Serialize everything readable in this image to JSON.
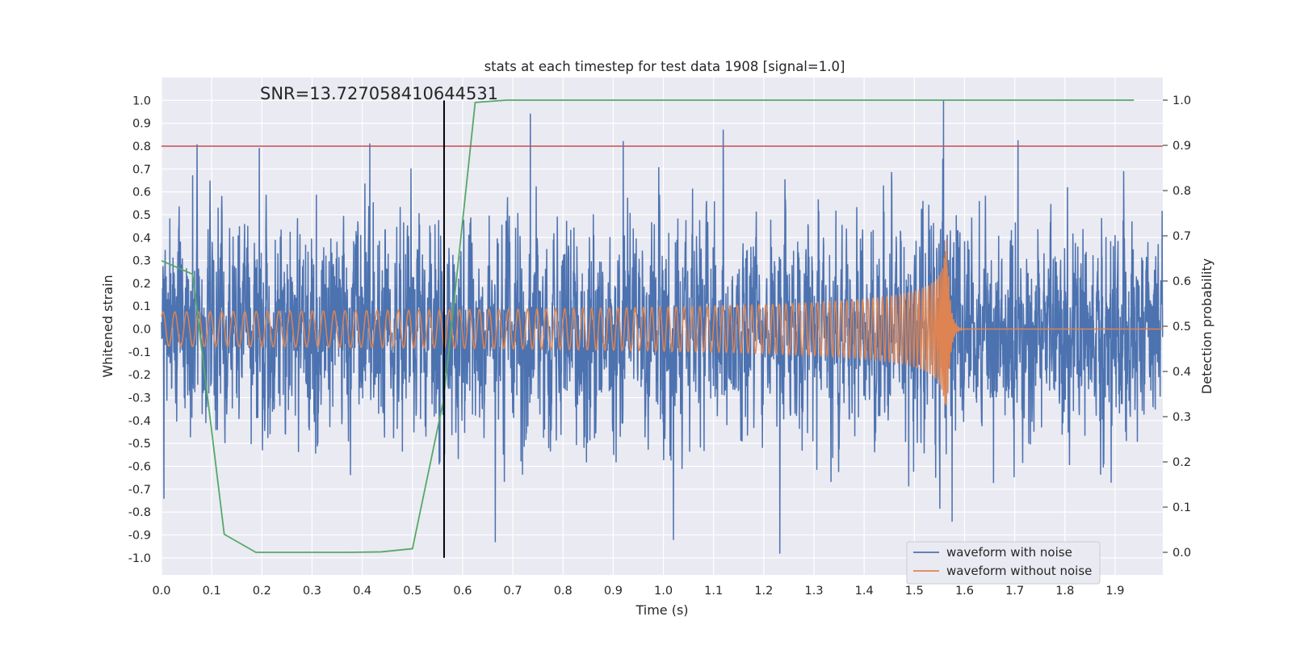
{
  "chart_data": {
    "type": "line",
    "title": "stats at each timestep for test data 1908 [signal=1.0]",
    "xlabel": "Time (s)",
    "ylabel": "Whitened strain",
    "y2label": "Detection probability",
    "xlim": [
      0.0,
      1.995
    ],
    "ylim": [
      -1.075,
      1.1
    ],
    "y2lim": [
      -0.05,
      1.05
    ],
    "xticks": [
      "0.0",
      "0.1",
      "0.2",
      "0.3",
      "0.4",
      "0.5",
      "0.6",
      "0.7",
      "0.8",
      "0.9",
      "1.0",
      "1.1",
      "1.2",
      "1.3",
      "1.4",
      "1.5",
      "1.6",
      "1.7",
      "1.8",
      "1.9"
    ],
    "yticks": [
      "1.0",
      "0.9",
      "0.8",
      "0.7",
      "0.6",
      "0.5",
      "0.4",
      "0.3",
      "0.2",
      "0.1",
      "0.0",
      "-0.1",
      "-0.2",
      "-0.3",
      "-0.4",
      "-0.5",
      "-0.6",
      "-0.7",
      "-0.8",
      "-0.9",
      "-1.0"
    ],
    "y2ticks": [
      "1.0",
      "0.9",
      "0.8",
      "0.7",
      "0.6",
      "0.5",
      "0.4",
      "0.3",
      "0.2",
      "0.1",
      "0.0"
    ],
    "annotation": "SNR=13.727058410644531",
    "threshold": {
      "y": 0.8,
      "color": "#c44e52"
    },
    "marker_line": {
      "x": 0.563,
      "y_from": -1.0,
      "y_to": 1.0,
      "color": "#000000"
    },
    "series": [
      {
        "name": "waveform with noise",
        "axis": "left",
        "color": "#4c72b0",
        "sample_rate": 2048,
        "duration": 2.0,
        "rms": 0.2,
        "notable_peaks": [
          {
            "x": 0.062,
            "y": 0.67
          },
          {
            "x": 0.195,
            "y": 0.79
          },
          {
            "x": 0.415,
            "y": 0.81
          },
          {
            "x": 0.735,
            "y": 0.94
          },
          {
            "x": 0.92,
            "y": 0.82
          },
          {
            "x": 1.558,
            "y": 1.0
          },
          {
            "x": 1.232,
            "y": -0.98
          },
          {
            "x": 1.02,
            "y": -0.92
          },
          {
            "x": 0.665,
            "y": -0.93
          },
          {
            "x": 0.005,
            "y": -0.74
          },
          {
            "x": 1.575,
            "y": -0.84
          }
        ]
      },
      {
        "name": "waveform without noise",
        "axis": "left",
        "color": "#dd8452",
        "type": "chirp",
        "t_merge": 1.565,
        "amplitude_start": 0.075,
        "amplitude_peak": 0.4,
        "freq_start": 42,
        "freq_end": 300
      },
      {
        "name": "detection probability",
        "axis": "right",
        "color": "#55a868",
        "x": [
          0.0,
          0.062,
          0.125,
          0.188,
          0.25,
          0.3125,
          0.375,
          0.4375,
          0.5,
          0.5625,
          0.625,
          0.6875,
          0.75,
          0.8125,
          0.875,
          0.9375,
          1.0,
          1.0625,
          1.125,
          1.1875,
          1.25,
          1.3125,
          1.375,
          1.4375,
          1.5,
          1.5625,
          1.625,
          1.6875,
          1.75,
          1.8125,
          1.875,
          1.9375
        ],
        "values": [
          0.645,
          0.615,
          0.04,
          0.0,
          0.0,
          0.0,
          0.0,
          0.001,
          0.008,
          0.34,
          0.995,
          1.0,
          1.0,
          1.0,
          1.0,
          1.0,
          1.0,
          1.0,
          1.0,
          1.0,
          1.0,
          1.0,
          1.0,
          1.0,
          1.0,
          1.0,
          1.0,
          1.0,
          1.0,
          1.0,
          1.0,
          1.0
        ]
      }
    ],
    "legend": {
      "position": "lower-right",
      "entries": [
        {
          "label": "waveform with noise",
          "color": "#4c72b0"
        },
        {
          "label": "waveform without noise",
          "color": "#dd8452"
        }
      ]
    }
  }
}
